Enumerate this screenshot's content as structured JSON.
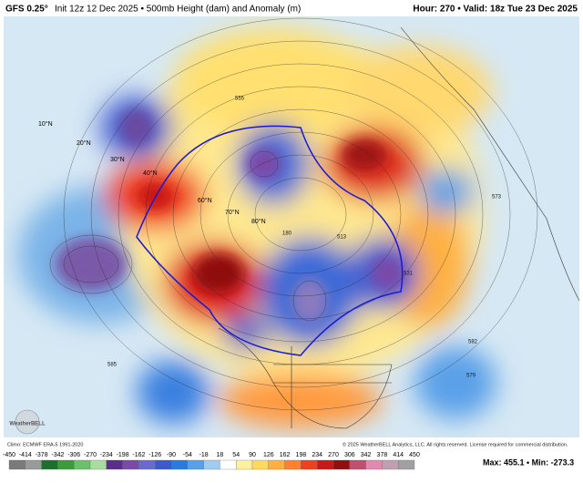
{
  "header": {
    "model": "GFS 0.25°",
    "description": "Init 12z 12 Dec 2025 • 500mb Height (dam) and Anomaly (m)",
    "valid": "Hour: 270 • Valid: 18z Tue 23 Dec 2025"
  },
  "map": {
    "lat_labels": [
      "10°N",
      "20°N",
      "30°N",
      "40°N",
      "60°N",
      "70°N",
      "80°N"
    ],
    "contour_labels": [
      "573",
      "555",
      "180",
      "513",
      "531",
      "582",
      "585",
      "579"
    ],
    "logo": "WeatherBELL"
  },
  "footer": {
    "climo": "Climo: ECMWF ERA-5 1991-2020",
    "copyright": "© 2025 WeatherBELL Analytics, LLC. All rights reserved. License required for commercial distribution.",
    "extremes": "Max: 455.1 • Min: -273.3"
  },
  "colorbar": {
    "ticks": [
      -450,
      -414,
      -378,
      -342,
      -306,
      -270,
      -234,
      -198,
      -162,
      -126,
      -90,
      -54,
      -18,
      18,
      54,
      90,
      126,
      162,
      198,
      234,
      270,
      306,
      342,
      378,
      414,
      450
    ],
    "colors": [
      "#7a7a7a",
      "#9a9a9a",
      "#1e6e2e",
      "#3c9a3c",
      "#6cc06c",
      "#a8dca0",
      "#5a2e8c",
      "#7a4aa8",
      "#6a6ad0",
      "#3c5ad0",
      "#2a7ae0",
      "#5aa0e8",
      "#a0ccf0",
      "#ffffff",
      "#fff0a0",
      "#ffd860",
      "#ffb040",
      "#ff8030",
      "#f04020",
      "#c81818",
      "#901010",
      "#c05070",
      "#e08ab0",
      "#c0a0b0",
      "#a0a0a0"
    ]
  }
}
